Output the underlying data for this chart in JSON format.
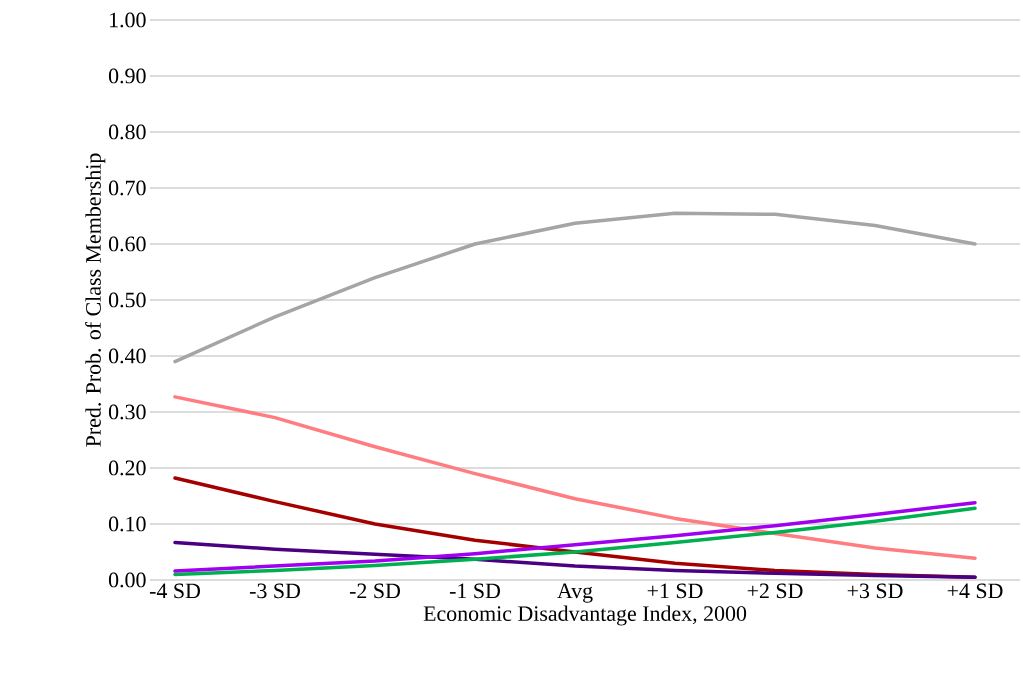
{
  "chart_data": {
    "type": "line",
    "xlabel": "Economic  Disadvantage  Index, 2000",
    "ylabel": "Pred. Prob.  of Class Membership",
    "categories": [
      "-4 SD",
      "-3 SD",
      "-2 SD",
      "-1 SD",
      "Avg",
      "+1 SD",
      "+2 SD",
      "+3 SD",
      "+4 SD"
    ],
    "series": [
      {
        "color": "#a5a5a5",
        "values": [
          0.39,
          0.47,
          0.54,
          0.6,
          0.637,
          0.655,
          0.653,
          0.633,
          0.6
        ]
      },
      {
        "color": "#ff7c80",
        "values": [
          0.327,
          0.29,
          0.238,
          0.19,
          0.145,
          0.11,
          0.083,
          0.057,
          0.039
        ]
      },
      {
        "color": "#a50000",
        "values": [
          0.182,
          0.14,
          0.1,
          0.071,
          0.05,
          0.03,
          0.017,
          0.01,
          0.005
        ]
      },
      {
        "color": "#4b0082",
        "values": [
          0.067,
          0.055,
          0.046,
          0.037,
          0.025,
          0.017,
          0.012,
          0.008,
          0.005
        ]
      },
      {
        "color": "#00b050",
        "values": [
          0.01,
          0.017,
          0.026,
          0.037,
          0.05,
          0.067,
          0.085,
          0.105,
          0.128
        ]
      },
      {
        "color": "#a000f0",
        "values": [
          0.016,
          0.025,
          0.034,
          0.047,
          0.063,
          0.079,
          0.097,
          0.117,
          0.138
        ]
      }
    ],
    "ylim": [
      0,
      1
    ],
    "yticks": [
      {
        "value": 0,
        "label": "0.00"
      },
      {
        "value": 0.1,
        "label": "0.10"
      },
      {
        "value": 0.2,
        "label": "0.20"
      },
      {
        "value": 0.3,
        "label": "0.30"
      },
      {
        "value": 0.4,
        "label": "0.40"
      },
      {
        "value": 0.5,
        "label": "0.50"
      },
      {
        "value": 0.6,
        "label": "0.60"
      },
      {
        "value": 0.7,
        "label": "0.70"
      },
      {
        "value": 0.8,
        "label": "0.80"
      },
      {
        "value": 0.9,
        "label": "0.90"
      },
      {
        "value": 1,
        "label": "1.00"
      }
    ],
    "grid": "y",
    "legend": false,
    "marker": "none",
    "line_style": "solid"
  }
}
